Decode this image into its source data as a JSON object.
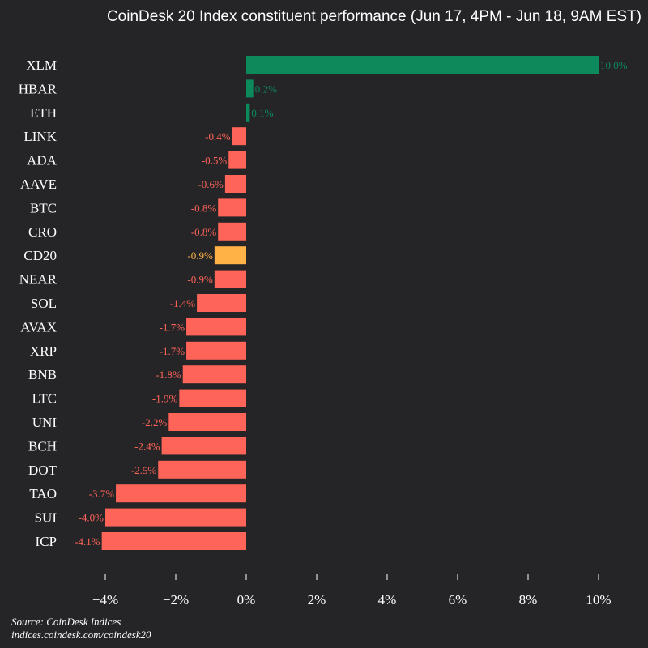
{
  "chart_data": {
    "type": "bar",
    "orientation": "horizontal",
    "title": "CoinDesk 20 Index constituent performance (Jun 17, 4PM - Jun 18, 9AM EST)",
    "categories": [
      "XLM",
      "HBAR",
      "ETH",
      "LINK",
      "ADA",
      "AAVE",
      "BTC",
      "CRO",
      "CD20",
      "NEAR",
      "SOL",
      "AVAX",
      "XRP",
      "BNB",
      "LTC",
      "UNI",
      "BCH",
      "DOT",
      "TAO",
      "SUI",
      "ICP"
    ],
    "values": [
      10.0,
      0.2,
      0.1,
      -0.4,
      -0.5,
      -0.6,
      -0.8,
      -0.8,
      -0.9,
      -0.9,
      -1.4,
      -1.7,
      -1.7,
      -1.8,
      -1.9,
      -2.2,
      -2.4,
      -2.5,
      -3.7,
      -4.0,
      -4.1
    ],
    "value_labels": [
      "10.0%",
      "0.2%",
      "0.1%",
      "-0.4%",
      "-0.5%",
      "-0.6%",
      "-0.8%",
      "-0.8%",
      "-0.9%",
      "-0.9%",
      "-1.4%",
      "-1.7%",
      "-1.7%",
      "-1.8%",
      "-1.9%",
      "-2.2%",
      "-2.4%",
      "-2.5%",
      "-3.7%",
      "-4.0%",
      "-4.1%"
    ],
    "highlight_category": "CD20",
    "xlim": [
      -4.5,
      10
    ],
    "xticks": [
      -4,
      -2,
      0,
      2,
      4,
      6,
      8,
      10
    ],
    "xtick_labels": [
      "−4%",
      "−2%",
      "0%",
      "2%",
      "4%",
      "6%",
      "8%",
      "10%"
    ],
    "grid": false,
    "colors": {
      "positive": "#0c8a5c",
      "negative": "#ff6458",
      "highlight": "#ffb347",
      "background": "#252427"
    }
  },
  "source": {
    "line1": "Source: CoinDesk Indices",
    "line2": "indices.coindesk.com/coindesk20"
  }
}
